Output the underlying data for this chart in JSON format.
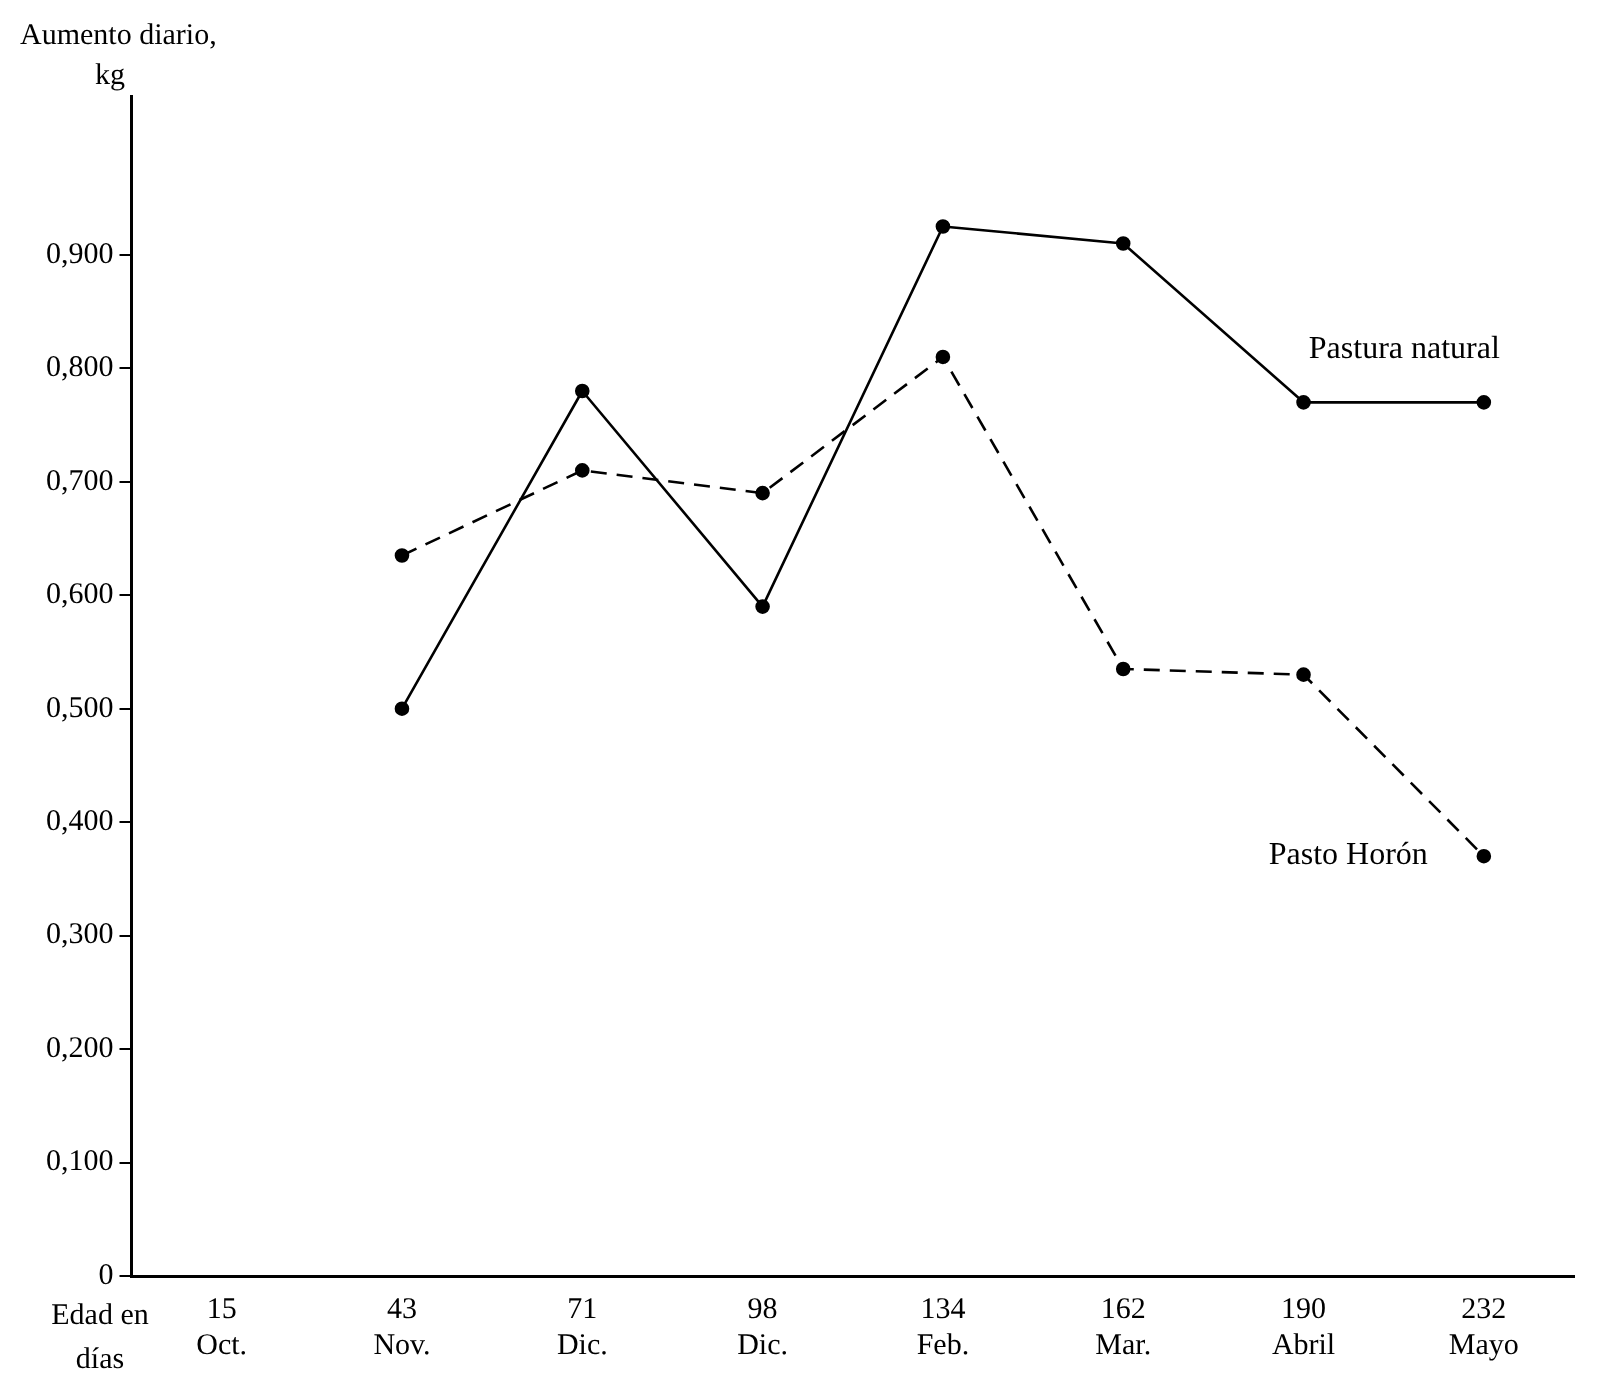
{
  "chart_data": {
    "type": "line",
    "xlabel": "Edad en días",
    "ylabel": "Aumento diario, kg",
    "categories": [
      "15 Oct.",
      "43 Nov.",
      "71 Dic.",
      "98 Dic.",
      "134 Feb.",
      "162 Mar.",
      "190 Abril",
      "232 Mayo"
    ],
    "series": [
      {
        "name": "Pastura natural",
        "color": "#000000",
        "line_style": "solid",
        "values": [
          null,
          0.5,
          0.78,
          0.59,
          0.925,
          0.91,
          0.77,
          0.77
        ]
      },
      {
        "name": "Pasto Horón",
        "color": "#000000",
        "line_style": "dashed",
        "values": [
          null,
          0.635,
          0.71,
          0.69,
          0.81,
          0.535,
          0.53,
          0.37
        ]
      }
    ],
    "ylim": [
      0,
      1.04
    ],
    "yticks": [
      {
        "value": 0,
        "label": "0"
      },
      {
        "value": 0.1,
        "label": "0,100"
      },
      {
        "value": 0.2,
        "label": "0,200"
      },
      {
        "value": 0.3,
        "label": "0,300"
      },
      {
        "value": 0.4,
        "label": "0,400"
      },
      {
        "value": 0.5,
        "label": "0,500"
      },
      {
        "value": 0.6,
        "label": "0,600"
      },
      {
        "value": 0.7,
        "label": "0,700"
      },
      {
        "value": 0.8,
        "label": "0,800"
      },
      {
        "value": 0.9,
        "label": "0,900"
      }
    ],
    "grid": false,
    "legend": false,
    "marker": "circle"
  }
}
